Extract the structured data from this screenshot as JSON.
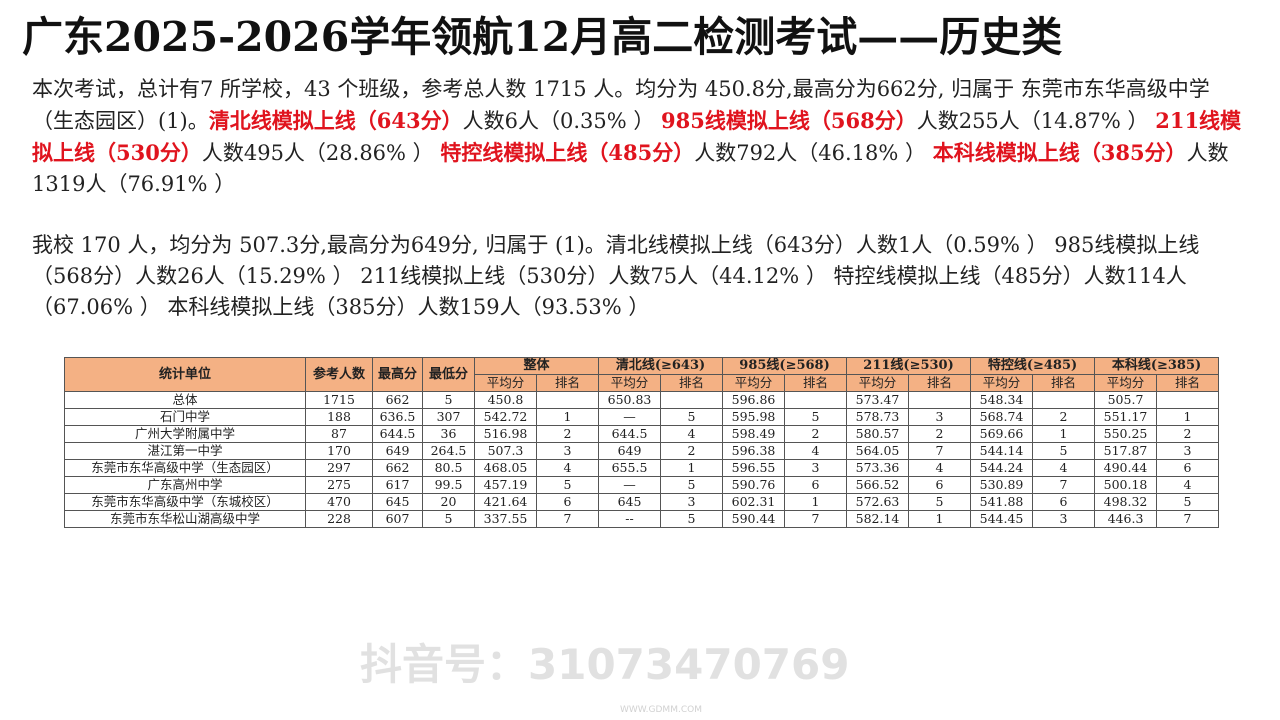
{
  "title": "广东2025-2026学年领航12月高二检测考试——历史类",
  "paragraph1": [
    {
      "text": "本次考试，总计有7 所学校，43 个班级，参考总人数 1715 人。均分为 450.8分,最高分为662分, 归属于 东莞市东华高级中学（生态园区）(1)。",
      "red": false
    },
    {
      "text": "清北线模拟上线（643分）",
      "red": true
    },
    {
      "text": "人数6人（0.35% ） ",
      "red": false
    },
    {
      "text": "985线模拟上线（568分）",
      "red": true
    },
    {
      "text": "人数255人（14.87% ） ",
      "red": false
    },
    {
      "text": "211线模拟上线（530分）",
      "red": true
    },
    {
      "text": "人数495人（28.86% ） ",
      "red": false
    },
    {
      "text": "特控线模拟上线（485分）",
      "red": true
    },
    {
      "text": "人数792人（46.18% ） ",
      "red": false
    },
    {
      "text": "本科线模拟上线（385分）",
      "red": true
    },
    {
      "text": "人数1319人（76.91% ）",
      "red": false
    }
  ],
  "paragraph2": "我校 170 人，均分为 507.3分,最高分为649分, 归属于 (1)。清北线模拟上线（643分）人数1人（0.59% ） 985线模拟上线（568分）人数26人（15.29% ） 211线模拟上线（530分）人数75人（44.12% ） 特控线模拟上线（485分）人数114人（67.06% ） 本科线模拟上线（385分）人数159人（93.53% ）",
  "table": {
    "fixed_headers": [
      "统计单位",
      "参考人数",
      "最高分",
      "最低分"
    ],
    "groups": [
      "整体",
      "清北线(≥643)",
      "985线(≥568)",
      "211线(≥530)",
      "特控线(≥485)",
      "本科线(≥385)"
    ],
    "sub_headers": [
      "平均分",
      "排名"
    ],
    "rows": [
      [
        "总体",
        "1715",
        "662",
        "5",
        "450.8",
        "",
        "650.83",
        "",
        "596.86",
        "",
        "573.47",
        "",
        "548.34",
        "",
        "505.7",
        ""
      ],
      [
        "石门中学",
        "188",
        "636.5",
        "307",
        "542.72",
        "1",
        "—",
        "5",
        "595.98",
        "5",
        "578.73",
        "3",
        "568.74",
        "2",
        "551.17",
        "1"
      ],
      [
        "广州大学附属中学",
        "87",
        "644.5",
        "36",
        "516.98",
        "2",
        "644.5",
        "4",
        "598.49",
        "2",
        "580.57",
        "2",
        "569.66",
        "1",
        "550.25",
        "2"
      ],
      [
        "湛江第一中学",
        "170",
        "649",
        "264.5",
        "507.3",
        "3",
        "649",
        "2",
        "596.38",
        "4",
        "564.05",
        "7",
        "544.14",
        "5",
        "517.87",
        "3"
      ],
      [
        "东莞市东华高级中学（生态园区）",
        "297",
        "662",
        "80.5",
        "468.05",
        "4",
        "655.5",
        "1",
        "596.55",
        "3",
        "573.36",
        "4",
        "544.24",
        "4",
        "490.44",
        "6"
      ],
      [
        "广东高州中学",
        "275",
        "617",
        "99.5",
        "457.19",
        "5",
        "—",
        "5",
        "590.76",
        "6",
        "566.52",
        "6",
        "530.89",
        "7",
        "500.18",
        "4"
      ],
      [
        "东莞市东华高级中学（东城校区）",
        "470",
        "645",
        "20",
        "421.64",
        "6",
        "645",
        "3",
        "602.31",
        "1",
        "572.63",
        "5",
        "541.88",
        "6",
        "498.32",
        "5"
      ],
      [
        "东莞市东华松山湖高级中学",
        "228",
        "607",
        "5",
        "337.55",
        "7",
        "--",
        "5",
        "590.44",
        "7",
        "582.14",
        "1",
        "544.45",
        "3",
        "446.3",
        "7"
      ]
    ]
  },
  "watermark": "抖音号：31073470769",
  "watermark_site": "WWW.GDMM.COM",
  "colors": {
    "accent_red": "#e0141e",
    "header_fill": "#f4b184"
  }
}
